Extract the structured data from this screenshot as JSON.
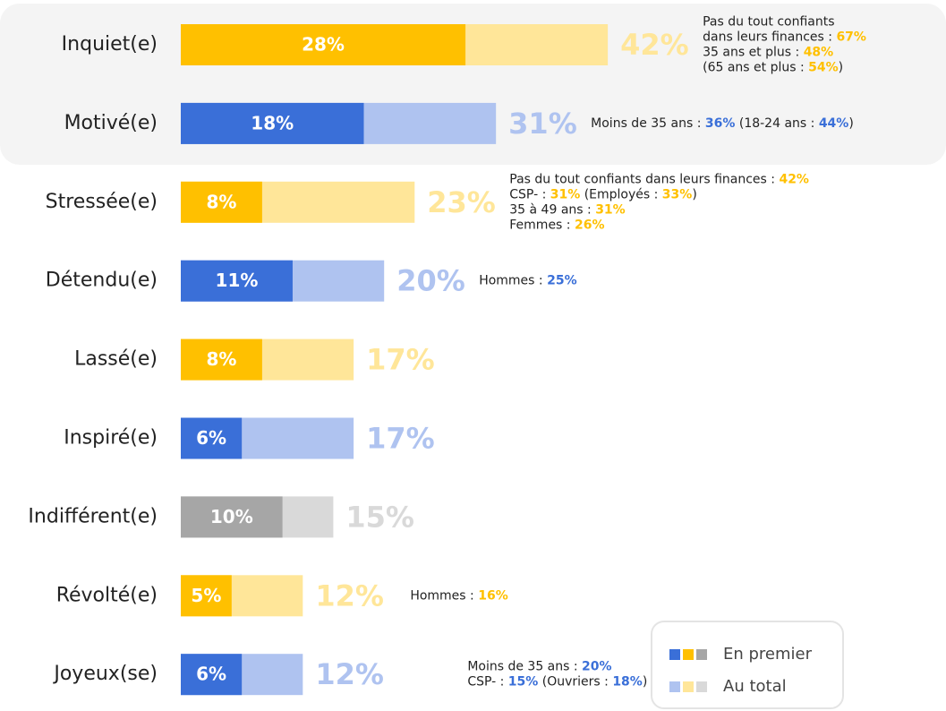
{
  "chart_data": {
    "type": "bar",
    "orientation": "horizontal",
    "categories": [
      "Inquiet(e)",
      "Motivé(e)",
      "Stressée(e)",
      "Détendu(e)",
      "Lassé(e)",
      "Inspiré(e)",
      "Indifférent(e)",
      "Révolté(e)",
      "Joyeux(se)"
    ],
    "xlim": [
      0,
      100
    ],
    "series": [
      {
        "name": "En premier",
        "values": [
          28,
          18,
          8,
          11,
          8,
          6,
          10,
          5,
          6
        ],
        "value_labels": [
          "28%",
          "18%",
          "8%",
          "11%",
          "8%",
          "6%",
          "10%",
          "5%",
          "6%"
        ],
        "colors": [
          "#ffc000",
          "#3a6fd8",
          "#ffc000",
          "#3a6fd8",
          "#ffc000",
          "#3a6fd8",
          "#a6a6a6",
          "#ffc000",
          "#3a6fd8"
        ],
        "legend_colors": [
          "#3a6fd8",
          "#ffc000",
          "#a6a6a6"
        ]
      },
      {
        "name": "Au total",
        "values": [
          42,
          31,
          23,
          20,
          17,
          17,
          15,
          12,
          12
        ],
        "value_labels": [
          "42%",
          "31%",
          "23%",
          "20%",
          "17%",
          "17%",
          "15%",
          "12%",
          "12%"
        ],
        "colors": [
          "#ffe699",
          "#afc3f0",
          "#ffe699",
          "#afc3f0",
          "#ffe699",
          "#afc3f0",
          "#d9d9d9",
          "#ffe699",
          "#afc3f0"
        ],
        "legend_colors": [
          "#afc3f0",
          "#ffe699",
          "#d9d9d9"
        ]
      }
    ],
    "annotations": [
      [
        [
          "Pas du tout confiants"
        ],
        [
          "dans leurs finances : ",
          {
            "text": "67%"
          }
        ],
        [
          "35 ans et plus : ",
          {
            "text": "48%"
          }
        ],
        [
          "(65 ans et plus : ",
          {
            "text": "54%"
          },
          ")"
        ]
      ],
      [
        [
          "Moins de 35 ans : ",
          {
            "text": "36%"
          },
          " (18-24 ans : ",
          {
            "text": "44%"
          },
          ")"
        ]
      ],
      [
        [
          "Pas du tout confiants dans leurs finances : ",
          {
            "text": "42%"
          }
        ],
        [
          "CSP- : ",
          {
            "text": "31%"
          },
          " (Employés : ",
          {
            "text": "33%"
          },
          ")"
        ],
        [
          "35 à 49 ans : ",
          {
            "text": "31%"
          }
        ],
        [
          "Femmes : ",
          {
            "text": "26%"
          }
        ]
      ],
      [
        [
          "Hommes : ",
          {
            "text": "25%"
          }
        ]
      ],
      null,
      null,
      null,
      [
        [
          "Hommes : ",
          {
            "text": "16%"
          }
        ]
      ],
      [
        [
          "Moins de 35 ans : ",
          {
            "text": "20%"
          }
        ],
        [
          "CSP- : ",
          {
            "text": "15%"
          },
          " (Ouvriers : ",
          {
            "text": "18%"
          },
          ")"
        ]
      ]
    ]
  }
}
